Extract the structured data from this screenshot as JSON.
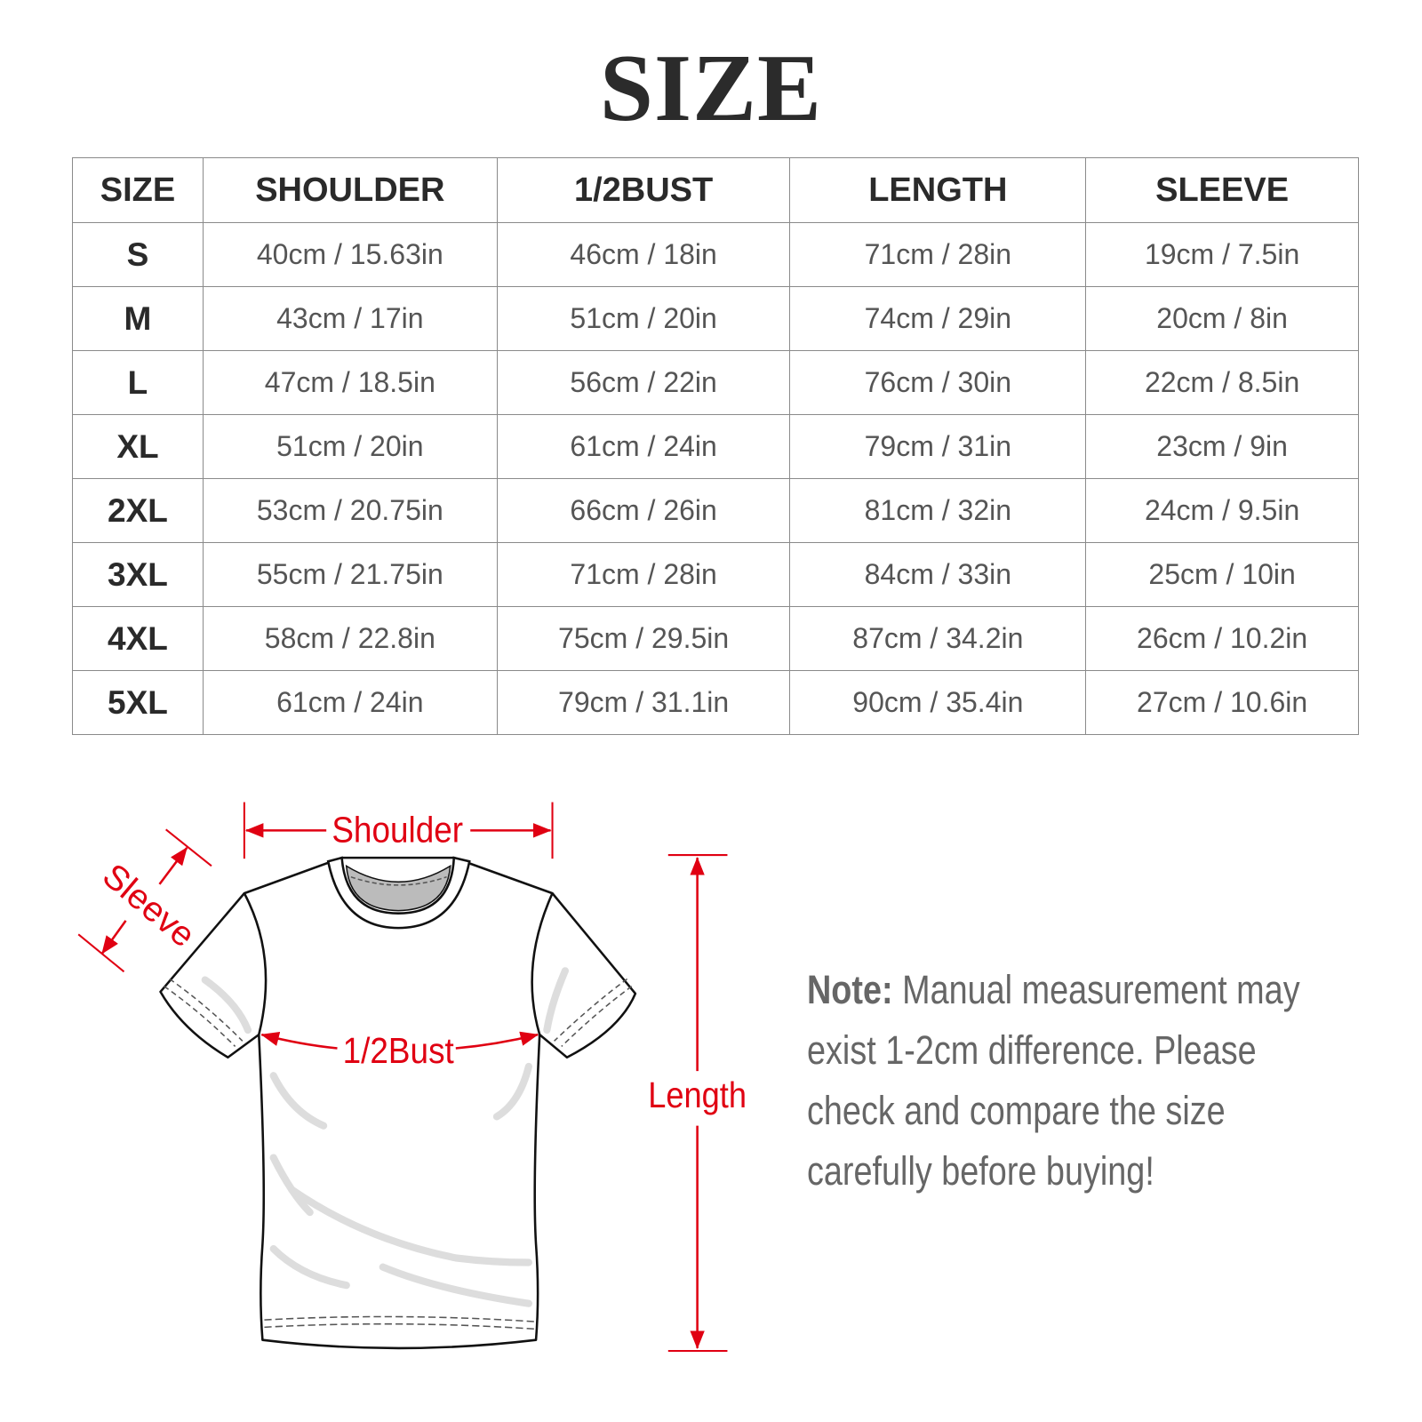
{
  "title": "SIZE",
  "table": {
    "headers": [
      "SIZE",
      "SHOULDER",
      "1/2BUST",
      "LENGTH",
      "SLEEVE"
    ],
    "rows": [
      [
        "S",
        "40cm / 15.63in",
        "46cm / 18in",
        "71cm / 28in",
        "19cm / 7.5in"
      ],
      [
        "M",
        "43cm / 17in",
        "51cm / 20in",
        "74cm / 29in",
        "20cm / 8in"
      ],
      [
        "L",
        "47cm / 18.5in",
        "56cm / 22in",
        "76cm / 30in",
        "22cm / 8.5in"
      ],
      [
        "XL",
        "51cm / 20in",
        "61cm / 24in",
        "79cm / 31in",
        "23cm / 9in"
      ],
      [
        "2XL",
        "53cm / 20.75in",
        "66cm / 26in",
        "81cm / 32in",
        "24cm / 9.5in"
      ],
      [
        "3XL",
        "55cm / 21.75in",
        "71cm / 28in",
        "84cm / 33in",
        "25cm / 10in"
      ],
      [
        "4XL",
        "58cm / 22.8in",
        "75cm / 29.5in",
        "87cm / 34.2in",
        "26cm / 10.2in"
      ],
      [
        "5XL",
        "61cm / 24in",
        "79cm / 31.1in",
        "90cm / 35.4in",
        "27cm / 10.6in"
      ]
    ]
  },
  "diagram": {
    "labels": {
      "shoulder": "Shoulder",
      "sleeve": "Sleeve",
      "bust": "1/2Bust",
      "length": "Length"
    },
    "accent_color": "#e00012"
  },
  "note": {
    "label": "Note:",
    "text": "Manual measurement may exist 1-2cm difference. Please check and compare the size carefully before buying!"
  }
}
